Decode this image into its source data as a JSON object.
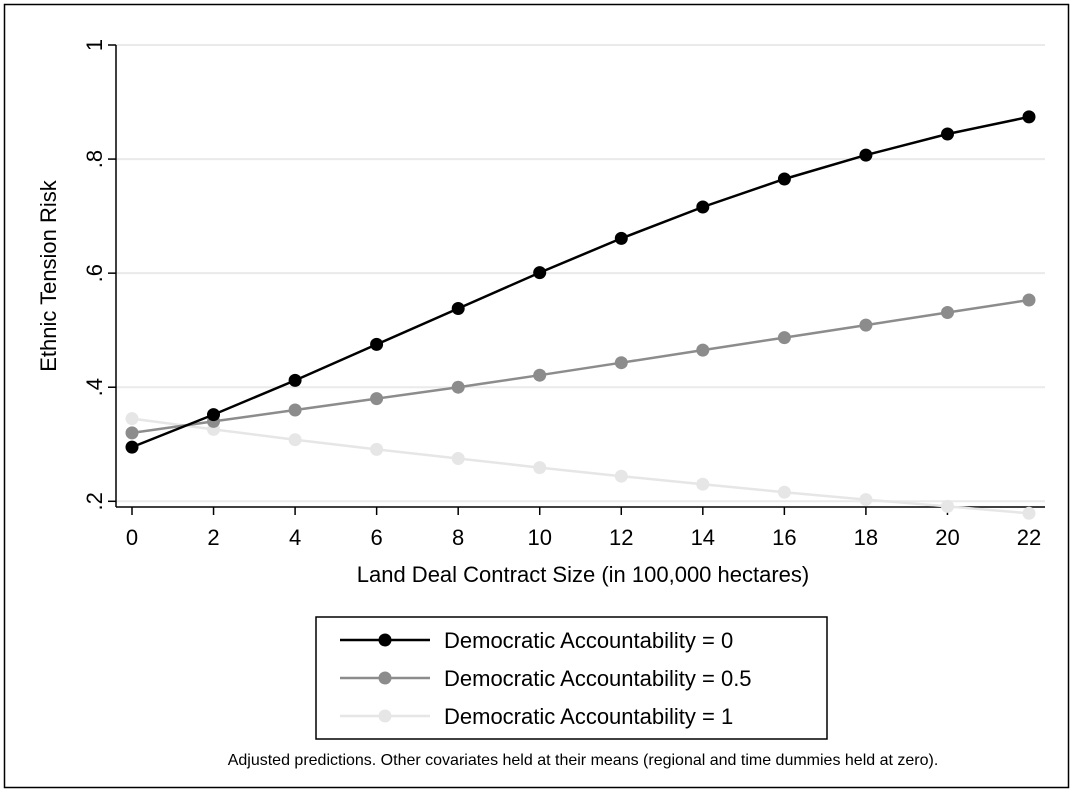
{
  "chart_data": {
    "type": "line",
    "title": "",
    "xlabel": "Land Deal Contract Size (in 100,000 hectares)",
    "ylabel": "Ethnic Tension Risk",
    "xlim": [
      0,
      22
    ],
    "ylim": [
      0.19,
      1.0
    ],
    "xticks": [
      0,
      2,
      4,
      6,
      8,
      10,
      12,
      14,
      16,
      18,
      20,
      22
    ],
    "xtick_labels": [
      "0",
      "2",
      "4",
      "6",
      "8",
      "10",
      "12",
      "14",
      "16",
      "18",
      "20",
      "22"
    ],
    "yticks": [
      0.2,
      0.4,
      0.6,
      0.8,
      1
    ],
    "ytick_labels": [
      ".2",
      ".4",
      ".6",
      ".8",
      "1"
    ],
    "grid": true,
    "legend_position": "bottom",
    "x": [
      0,
      2,
      4,
      6,
      8,
      10,
      12,
      14,
      16,
      18,
      20,
      22
    ],
    "series": [
      {
        "name": "Democratic Accountability = 0",
        "color": "#000000",
        "values": [
          0.295,
          0.352,
          0.412,
          0.475,
          0.538,
          0.601,
          0.661,
          0.716,
          0.765,
          0.807,
          0.844,
          0.874
        ]
      },
      {
        "name": "Democratic Accountability = 0.5",
        "color": "#8c8c8c",
        "values": [
          0.32,
          0.34,
          0.36,
          0.38,
          0.4,
          0.421,
          0.443,
          0.465,
          0.487,
          0.509,
          0.531,
          0.553
        ]
      },
      {
        "name": "Democratic Accountability = 1",
        "color": "#e6e6e6",
        "values": [
          0.345,
          0.326,
          0.308,
          0.291,
          0.275,
          0.259,
          0.244,
          0.23,
          0.216,
          0.203,
          0.191,
          0.179
        ]
      }
    ],
    "note": "Adjusted predictions. Other covariates held at their means (regional and time dummies held at zero)."
  }
}
